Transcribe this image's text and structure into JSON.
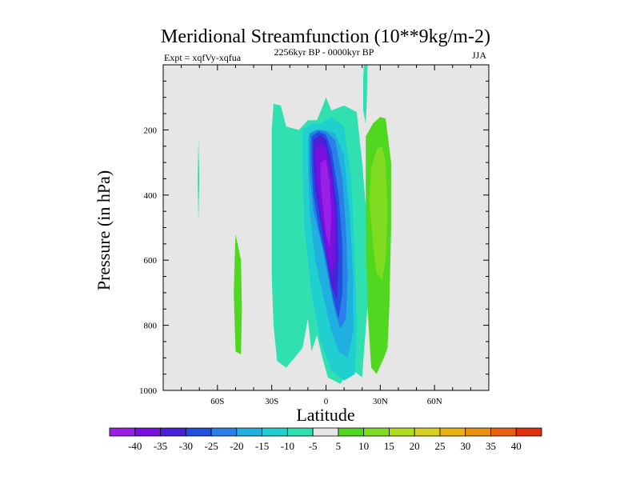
{
  "chart_data": {
    "type": "contour",
    "title": "Meridional Streamfunction (10**9kg/m-2)",
    "experiment_label": "Expt = xqfVy-xqfua",
    "period_label": "2256kyr BP - 0000kyr BP",
    "season_label": "JJA",
    "xlabel": "Latitude",
    "ylabel": "Pressure (in hPa)",
    "xlim": [
      -90,
      90
    ],
    "ylim": [
      1000,
      0
    ],
    "x_ticks": [
      {
        "value": -60,
        "label": "60S"
      },
      {
        "value": -30,
        "label": "30S"
      },
      {
        "value": 0,
        "label": "0"
      },
      {
        "value": 30,
        "label": "30N"
      },
      {
        "value": 60,
        "label": "60N"
      }
    ],
    "y_ticks": [
      {
        "value": 200,
        "label": "200"
      },
      {
        "value": 400,
        "label": "400"
      },
      {
        "value": 600,
        "label": "600"
      },
      {
        "value": 800,
        "label": "800"
      },
      {
        "value": 1000,
        "label": "1000"
      }
    ],
    "background_color": "#e6e6e6",
    "colorbar": {
      "levels": [
        "-40",
        "-35",
        "-30",
        "-25",
        "-20",
        "-15",
        "-10",
        "-5",
        "5",
        "10",
        "15",
        "20",
        "25",
        "30",
        "35",
        "40"
      ],
      "colors": [
        "#9a20e8",
        "#7a10e0",
        "#4a20d8",
        "#2050e0",
        "#2a80e8",
        "#20b0e0",
        "#20d0d0",
        "#30e0b0",
        "#e6e6e6",
        "#50d820",
        "#80dc20",
        "#b0dc20",
        "#d8d020",
        "#e8b010",
        "#e89010",
        "#e86010",
        "#e03010"
      ]
    },
    "regions": [
      {
        "name": "cyan-band-60S",
        "level": "-5",
        "fill": "#30e0b0",
        "points": [
          [
            -70.5,
            230
          ],
          [
            -70,
            350
          ],
          [
            -70.5,
            480
          ],
          [
            -71,
            350
          ]
        ]
      },
      {
        "name": "green-band-45S",
        "level": "5",
        "fill": "#50d820",
        "points": [
          [
            -50,
            520
          ],
          [
            -47,
            600
          ],
          [
            -46.5,
            750
          ],
          [
            -47,
            890
          ],
          [
            -50,
            880
          ],
          [
            -51,
            700
          ],
          [
            -50.5,
            600
          ]
        ]
      },
      {
        "name": "cyan-cell-30S-0",
        "level": "-5",
        "fill": "#30e0b0",
        "points": [
          [
            -29,
            120
          ],
          [
            -25,
            125
          ],
          [
            -22,
            190
          ],
          [
            -15,
            200
          ],
          [
            -10,
            170
          ],
          [
            -5,
            170
          ],
          [
            -2,
            130
          ],
          [
            0,
            100
          ],
          [
            3,
            140
          ],
          [
            10,
            125
          ],
          [
            17,
            145
          ],
          [
            20,
            300
          ],
          [
            23,
            500
          ],
          [
            23,
            740
          ],
          [
            21,
            880
          ],
          [
            20,
            960
          ],
          [
            13,
            930
          ],
          [
            8,
            980
          ],
          [
            1,
            960
          ],
          [
            -2,
            900
          ],
          [
            -5,
            830
          ],
          [
            -8,
            880
          ],
          [
            -10,
            780
          ],
          [
            -13,
            870
          ],
          [
            -22,
            930
          ],
          [
            -27,
            910
          ],
          [
            -29,
            800
          ],
          [
            -30,
            650
          ],
          [
            -30,
            400
          ],
          [
            -30,
            200
          ]
        ]
      },
      {
        "name": "cyan-spike-22N",
        "level": "-5",
        "fill": "#30e0b0",
        "points": [
          [
            21,
            0
          ],
          [
            23,
            0
          ],
          [
            22.5,
            120
          ],
          [
            22,
            180
          ],
          [
            20.5,
            140
          ],
          [
            20.5,
            40
          ]
        ]
      },
      {
        "name": "teal-ring",
        "level": "-10",
        "fill": "#20d0d0",
        "points": [
          [
            -13,
            200
          ],
          [
            -8,
            180
          ],
          [
            -3,
            180
          ],
          [
            3,
            160
          ],
          [
            10,
            190
          ],
          [
            14,
            350
          ],
          [
            16,
            600
          ],
          [
            17,
            800
          ],
          [
            16,
            950
          ],
          [
            10,
            970
          ],
          [
            3,
            940
          ],
          [
            -3,
            850
          ],
          [
            -8,
            700
          ],
          [
            -12,
            500
          ],
          [
            -13,
            300
          ]
        ]
      },
      {
        "name": "light-blue-ring",
        "level": "-15",
        "fill": "#20b0e0",
        "points": [
          [
            -10,
            220
          ],
          [
            -6,
            200
          ],
          [
            -1,
            200
          ],
          [
            5,
            210
          ],
          [
            10,
            280
          ],
          [
            13,
            450
          ],
          [
            15,
            650
          ],
          [
            15,
            820
          ],
          [
            12,
            900
          ],
          [
            7,
            880
          ],
          [
            3,
            820
          ],
          [
            -2,
            700
          ],
          [
            -6,
            600
          ],
          [
            -9,
            450
          ],
          [
            -10,
            300
          ]
        ]
      },
      {
        "name": "blue-ring",
        "level": "-20",
        "fill": "#2a80e8",
        "points": [
          [
            -9,
            210
          ],
          [
            -4,
            200
          ],
          [
            0,
            205
          ],
          [
            5,
            230
          ],
          [
            9,
            350
          ],
          [
            11,
            500
          ],
          [
            12,
            650
          ],
          [
            11,
            780
          ],
          [
            8,
            810
          ],
          [
            5,
            760
          ],
          [
            2,
            680
          ],
          [
            -2,
            560
          ],
          [
            -7,
            450
          ],
          [
            -9,
            330
          ]
        ]
      },
      {
        "name": "mid-blue-ring",
        "level": "-25",
        "fill": "#2050e0",
        "points": [
          [
            -8,
            220
          ],
          [
            -4,
            205
          ],
          [
            0,
            215
          ],
          [
            3,
            260
          ],
          [
            7,
            400
          ],
          [
            9,
            550
          ],
          [
            9,
            700
          ],
          [
            7,
            780
          ],
          [
            4,
            720
          ],
          [
            0,
            600
          ],
          [
            -4,
            500
          ],
          [
            -7,
            400
          ],
          [
            -8,
            300
          ]
        ]
      },
      {
        "name": "indigo-ring",
        "level": "-30",
        "fill": "#4a20d8",
        "points": [
          [
            -7,
            230
          ],
          [
            -3,
            215
          ],
          [
            0,
            230
          ],
          [
            3,
            300
          ],
          [
            6,
            430
          ],
          [
            7,
            580
          ],
          [
            6,
            720
          ],
          [
            3,
            680
          ],
          [
            0,
            580
          ],
          [
            -3,
            480
          ],
          [
            -6,
            380
          ],
          [
            -7,
            290
          ]
        ]
      },
      {
        "name": "violet-ring",
        "level": "-35",
        "fill": "#7a10e0",
        "points": [
          [
            -6,
            260
          ],
          [
            -3,
            240
          ],
          [
            0,
            260
          ],
          [
            3,
            350
          ],
          [
            5,
            470
          ],
          [
            5,
            600
          ],
          [
            3,
            640
          ],
          [
            0,
            560
          ],
          [
            -3,
            450
          ],
          [
            -5,
            360
          ]
        ]
      },
      {
        "name": "purple-core",
        "level": "-40",
        "fill": "#9a20e8",
        "points": [
          [
            -3,
            300
          ],
          [
            0,
            290
          ],
          [
            2,
            360
          ],
          [
            3,
            470
          ],
          [
            2,
            560
          ],
          [
            0,
            520
          ],
          [
            -2,
            420
          ],
          [
            -3,
            350
          ]
        ]
      },
      {
        "name": "green-cell-30N",
        "level": "5",
        "fill": "#50d820",
        "points": [
          [
            22,
            220
          ],
          [
            26,
            180
          ],
          [
            30,
            160
          ],
          [
            33,
            165
          ],
          [
            36,
            300
          ],
          [
            36,
            500
          ],
          [
            35,
            750
          ],
          [
            34,
            870
          ],
          [
            32,
            900
          ],
          [
            28,
            950
          ],
          [
            25,
            930
          ],
          [
            23,
            750
          ],
          [
            22,
            500
          ]
        ]
      },
      {
        "name": "yellow-green-core-30N",
        "level": "10",
        "fill": "#80dc20",
        "points": [
          [
            25,
            320
          ],
          [
            28,
            260
          ],
          [
            31,
            250
          ],
          [
            33,
            300
          ],
          [
            34,
            450
          ],
          [
            33,
            600
          ],
          [
            31,
            660
          ],
          [
            28,
            640
          ],
          [
            26,
            550
          ],
          [
            24,
            420
          ]
        ]
      }
    ]
  }
}
